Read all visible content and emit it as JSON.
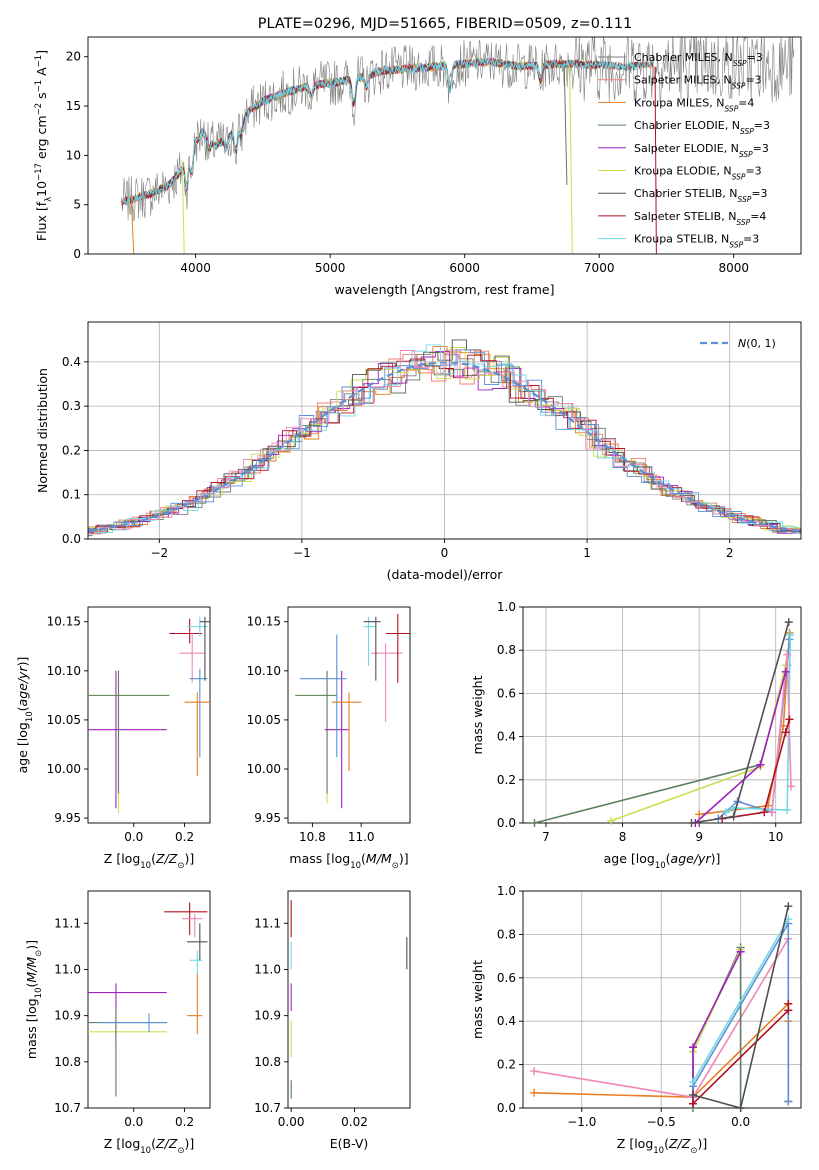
{
  "title": "PLATE=0296, MJD=51665, FIBERID=0509, z=0.111",
  "colors": {
    "chabrier_miles": "#808080",
    "salpeter_miles": "#f07f70",
    "kroupa_miles": "#e67e22",
    "chabrier_elodie": "#5a7f60",
    "salpeter_elodie": "#a020c0",
    "kroupa_elodie": "#c8e050",
    "chabrier_stelib": "#505050",
    "salpeter_stelib": "#b01020",
    "kroupa_stelib": "#70d8e8",
    "blue": "#5b8fd6",
    "pink": "#f088b8",
    "normal": "#5b8fd6"
  },
  "chart_data": [
    {
      "id": "spectrum",
      "type": "line",
      "xlabel": "wavelength [Angstrom, rest frame]",
      "ylabel": "Flux [f_λ 10^-17 erg cm^-2 s^-1 A^-1]",
      "xlim": [
        3200,
        8500
      ],
      "ylim": [
        0,
        22
      ],
      "xticks": [
        "4000",
        "5000",
        "6000",
        "7000",
        "8000"
      ],
      "yticks": [
        "0",
        "5",
        "10",
        "15",
        "20"
      ],
      "legend_position": "upper right",
      "series": [
        {
          "name": "Chabrier MILES, N_SSP=3"
        },
        {
          "name": "Salpeter MILES, N_SSP=3"
        },
        {
          "name": "Kroupa MILES, N_SSP=4"
        },
        {
          "name": "Chabrier ELODIE, N_SSP=3"
        },
        {
          "name": "Salpeter ELODIE, N_SSP=3"
        },
        {
          "name": "Kroupa ELODIE, N_SSP=3"
        },
        {
          "name": "Chabrier STELIB, N_SSP=3"
        },
        {
          "name": "Salpeter STELIB, N_SSP=4"
        },
        {
          "name": "Kroupa STELIB, N_SSP=3"
        }
      ],
      "continuum": {
        "x": [
          3450,
          3550,
          3650,
          3700,
          3800,
          3900,
          3950,
          4050,
          4150,
          4300,
          4400,
          4500,
          4700,
          4900,
          5000,
          5200,
          5400,
          5600,
          5800,
          6000,
          6200,
          6400,
          6600,
          6800,
          7000,
          7200,
          7400
        ],
        "y": [
          5.3,
          5.6,
          6.0,
          6.3,
          7.0,
          8.5,
          10.5,
          12.3,
          11.0,
          12.5,
          14.5,
          15.5,
          16.5,
          17.2,
          17.3,
          17.8,
          18.6,
          18.8,
          19.0,
          19.3,
          19.5,
          19.0,
          19.2,
          19.3,
          19.2,
          19.0,
          19.2
        ]
      }
    },
    {
      "id": "residuals",
      "type": "area",
      "xlabel": "(data-model)/error",
      "ylabel": "Normed distribution",
      "xlim": [
        -2.5,
        2.5
      ],
      "ylim": [
        0,
        0.49
      ],
      "xticks": [
        "−2",
        "−1",
        "0",
        "1",
        "2"
      ],
      "yticks": [
        "0.0",
        "0.1",
        "0.2",
        "0.3",
        "0.4"
      ],
      "grid": true,
      "legend_position": "upper right",
      "legend": "N(0,1)"
    },
    {
      "id": "age_vs_Z",
      "type": "scatter",
      "xlabel": "Z [log10(Z/Z⊙)]",
      "ylabel": "age  [log10(age/yr)]",
      "xlim": [
        -0.18,
        0.3
      ],
      "ylim": [
        9.945,
        10.165
      ],
      "xticks": [
        "0.0",
        "0.2"
      ],
      "yticks": [
        "9.95",
        "10.00",
        "10.05",
        "10.10",
        "10.15"
      ],
      "points": [
        {
          "x": -0.07,
          "xe": [
            0.2,
            0.2
          ],
          "y": 10.04,
          "ye": [
            0.08,
            0.06
          ],
          "color": "#a020c0"
        },
        {
          "x": -0.06,
          "xe": [
            0.2,
            0.2
          ],
          "y": 10.075,
          "ye": [
            0.12,
            0.02
          ],
          "color": "#c8e050"
        },
        {
          "x": -0.06,
          "xe": [
            0.2,
            0.2
          ],
          "y": 10.075,
          "ye": [
            0.1,
            0.025
          ],
          "color": "#5a7f60"
        },
        {
          "x": 0.22,
          "xe": [
            0.08,
            0.05
          ],
          "y": 10.138,
          "ye": [
            0.01,
            0.015
          ],
          "color": "#b01020"
        },
        {
          "x": 0.25,
          "xe": [
            0.05,
            0.05
          ],
          "y": 10.068,
          "ye": [
            0.075,
            0.01
          ],
          "color": "#e67e22"
        },
        {
          "x": 0.23,
          "xe": [
            0.05,
            0.05
          ],
          "y": 10.118,
          "ye": [
            0.03,
            0.02
          ],
          "color": "#f088b8"
        },
        {
          "x": 0.26,
          "xe": [
            0.05,
            0.03
          ],
          "y": 10.145,
          "ye": [
            0.01,
            0.01
          ],
          "color": "#70d8e8"
        },
        {
          "x": 0.26,
          "xe": [
            0.04,
            0.03
          ],
          "y": 10.092,
          "ye": [
            0.08,
            0.01
          ],
          "color": "#5b8fd6"
        },
        {
          "x": 0.28,
          "xe": [
            0.02,
            0.02
          ],
          "y": 10.15,
          "ye": [
            0.06,
            0.005
          ],
          "color": "#505050"
        }
      ]
    },
    {
      "id": "age_vs_mass",
      "type": "scatter",
      "xlabel": "mass [log10(M/M⊙)]",
      "ylabel": "",
      "xlim": [
        10.7,
        11.2
      ],
      "ylim": [
        9.945,
        10.165
      ],
      "xticks": [
        "10.8",
        "11.0"
      ],
      "yticks": [
        "9.95",
        "10.00",
        "10.05",
        "10.10",
        "10.15"
      ],
      "points": [
        {
          "x": 10.86,
          "xe": [
            0.13,
            0.04
          ],
          "y": 10.075,
          "ye": [
            0.11,
            0.025
          ],
          "color": "#c8e050"
        },
        {
          "x": 10.86,
          "xe": [
            0.13,
            0.04
          ],
          "y": 10.075,
          "ye": [
            0.1,
            0.025
          ],
          "color": "#5a7f60"
        },
        {
          "x": 10.92,
          "xe": [
            0.07,
            0.03
          ],
          "y": 10.04,
          "ye": [
            0.08,
            0.06
          ],
          "color": "#a020c0"
        },
        {
          "x": 10.9,
          "xe": [
            0.15,
            0.04
          ],
          "y": 10.092,
          "ye": [
            0.08,
            0.045
          ],
          "color": "#5b8fd6"
        },
        {
          "x": 10.95,
          "xe": [
            0.07,
            0.05
          ],
          "y": 10.068,
          "ye": [
            0.07,
            0.01
          ],
          "color": "#e67e22"
        },
        {
          "x": 11.03,
          "xe": [
            0.02,
            0.03
          ],
          "y": 10.145,
          "ye": [
            0.04,
            0.01
          ],
          "color": "#70d8e8"
        },
        {
          "x": 11.1,
          "xe": [
            0.06,
            0.07
          ],
          "y": 10.118,
          "ye": [
            0.07,
            0.01
          ],
          "color": "#f088b8"
        },
        {
          "x": 11.15,
          "xe": [
            0.05,
            0.05
          ],
          "y": 10.138,
          "ye": [
            0.05,
            0.02
          ],
          "color": "#b01020"
        },
        {
          "x": 11.06,
          "xe": [
            0.05,
            0.02
          ],
          "y": 10.15,
          "ye": [
            0.06,
            0.005
          ],
          "color": "#505050"
        }
      ]
    },
    {
      "id": "massweight_vs_age",
      "type": "line",
      "xlabel": "age  [log10(age/yr)]",
      "ylabel": "mass weight",
      "xlim": [
        6.7,
        10.33
      ],
      "ylim": [
        0,
        1
      ],
      "xticks": [
        "7",
        "8",
        "9",
        "10"
      ],
      "yticks": [
        "0.0",
        "0.2",
        "0.4",
        "0.6",
        "0.8",
        "1.0"
      ],
      "grid": true,
      "series": [
        {
          "color": "#5a7f60",
          "x": [
            6.85,
            9.8,
            10.15
          ],
          "y": [
            0.0,
            0.27,
            0.73
          ]
        },
        {
          "color": "#c8e050",
          "x": [
            7.85,
            9.8,
            10.13
          ],
          "y": [
            0.01,
            0.26,
            0.73
          ]
        },
        {
          "color": "#e67e22",
          "x": [
            9.0,
            9.9,
            10.1,
            10.18
          ],
          "y": [
            0.04,
            0.08,
            0.45,
            0.88
          ]
        },
        {
          "color": "#5b8fd6",
          "x": [
            9.25,
            9.5,
            9.95,
            10.18
          ],
          "y": [
            0.02,
            0.1,
            0.05,
            0.85
          ]
        },
        {
          "color": "#70d8e8",
          "x": [
            9.35,
            9.45,
            10.15,
            10.19
          ],
          "y": [
            0.05,
            0.07,
            0.06,
            0.87
          ]
        },
        {
          "color": "#f088b8",
          "x": [
            9.95,
            10.15,
            10.2
          ],
          "y": [
            0.05,
            0.78,
            0.17
          ]
        },
        {
          "color": "#a020c0",
          "x": [
            8.95,
            9.8,
            10.13
          ],
          "y": [
            0.0,
            0.27,
            0.7
          ]
        },
        {
          "color": "#b01020",
          "x": [
            9.3,
            9.85,
            10.13,
            10.18
          ],
          "y": [
            0.02,
            0.05,
            0.42,
            0.48
          ]
        },
        {
          "color": "#505050",
          "x": [
            8.9,
            9.45,
            10.17
          ],
          "y": [
            0.0,
            0.03,
            0.93
          ]
        }
      ]
    },
    {
      "id": "mass_vs_Z",
      "type": "scatter",
      "xlabel": "Z [log10(Z/Z⊙)]",
      "ylabel": "mass [log10(M/M⊙)]",
      "xlim": [
        -0.18,
        0.3
      ],
      "ylim": [
        10.7,
        11.17
      ],
      "xticks": [
        "0.0",
        "0.2"
      ],
      "yticks": [
        "10.7",
        "10.8",
        "10.9",
        "11.0",
        "11.1"
      ],
      "points": [
        {
          "x": -0.07,
          "xe": [
            0.2,
            0.2
          ],
          "y": 10.95,
          "ye": [
            0.11,
            0.02
          ],
          "color": "#a020c0"
        },
        {
          "x": -0.07,
          "xe": [
            0.2,
            0.2
          ],
          "y": 10.865,
          "ye": [
            0.1,
            0.03
          ],
          "color": "#c8e050"
        },
        {
          "x": -0.07,
          "xe": [
            0.2,
            0.2
          ],
          "y": 10.885,
          "ye": [
            0.16,
            0.03
          ],
          "color": "#5a7f60"
        },
        {
          "x": 0.06,
          "xe": [
            0.2,
            0.06
          ],
          "y": 10.885,
          "ye": [
            0.02,
            0.02
          ],
          "color": "#5b8fd6"
        },
        {
          "x": 0.22,
          "xe": [
            0.1,
            0.07
          ],
          "y": 11.125,
          "ye": [
            0.05,
            0.02
          ],
          "color": "#b01020"
        },
        {
          "x": 0.24,
          "xe": [
            0.05,
            0.03
          ],
          "y": 11.11,
          "ye": [
            0.04,
            0.01
          ],
          "color": "#f088b8"
        },
        {
          "x": 0.25,
          "xe": [
            0.03,
            0.02
          ],
          "y": 11.02,
          "ye": [
            0.03,
            0.02
          ],
          "color": "#70d8e8"
        },
        {
          "x": 0.26,
          "xe": [
            0.05,
            0.03
          ],
          "y": 11.06,
          "ye": [
            0.04,
            0.04
          ],
          "color": "#505050"
        },
        {
          "x": 0.25,
          "xe": [
            0.04,
            0.02
          ],
          "y": 10.9,
          "ye": [
            0.04,
            0.09
          ],
          "color": "#e67e22"
        }
      ]
    },
    {
      "id": "mass_vs_ebv",
      "type": "scatter",
      "xlabel": "E(B-V)",
      "ylabel": "",
      "xlim": [
        -0.001,
        0.0375
      ],
      "ylim": [
        10.7,
        11.17
      ],
      "xticks": [
        "0.00",
        "0.02"
      ],
      "yticks": [
        "10.7",
        "10.8",
        "10.9",
        "11.0",
        "11.1"
      ],
      "points": [
        {
          "x": 0.0,
          "y": 11.1,
          "ye": [
            0.03,
            0.05
          ],
          "color": "#b01020"
        },
        {
          "x": 0.0,
          "y": 11.03,
          "ye": [
            0.03,
            0.03
          ],
          "color": "#70d8e8"
        },
        {
          "x": 0.0,
          "y": 10.93,
          "ye": [
            0.02,
            0.04
          ],
          "color": "#a020c0"
        },
        {
          "x": 0.0,
          "y": 10.85,
          "ye": [
            0.04,
            0.04
          ],
          "color": "#c8e050"
        },
        {
          "x": 0.0,
          "y": 10.74,
          "ye": [
            0.02,
            0.02
          ],
          "color": "#5a7f60"
        },
        {
          "x": 0.0365,
          "y": 11.035,
          "ye": [
            0.035,
            0.035
          ],
          "color": "#505050"
        }
      ]
    },
    {
      "id": "massweight_vs_Z",
      "type": "line",
      "xlabel": "Z [log10(Z/Z⊙)]",
      "ylabel": "mass weight",
      "xlim": [
        -1.37,
        0.38
      ],
      "ylim": [
        0,
        1
      ],
      "xticks": [
        "−1.0",
        "−0.5",
        "0.0"
      ],
      "yticks": [
        "0.0",
        "0.2",
        "0.4",
        "0.6",
        "0.8",
        "1.0"
      ],
      "grid": true,
      "series": [
        {
          "color": "#e67e22",
          "x": [
            -1.3,
            -0.3,
            0.3,
            0.3,
            0.3
          ],
          "y": [
            0.07,
            0.05,
            0.48,
            0.4,
            0.03
          ]
        },
        {
          "color": "#f088b8",
          "x": [
            -1.3,
            -0.3,
            0.3
          ],
          "y": [
            0.17,
            0.05,
            0.78
          ]
        },
        {
          "color": "#5a7f60",
          "x": [
            -0.3,
            -0.3,
            0.0,
            0.0
          ],
          "y": [
            0.0,
            0.26,
            0.74,
            0.0
          ]
        },
        {
          "color": "#c8e050",
          "x": [
            -0.3,
            0.0
          ],
          "y": [
            0.26,
            0.73
          ]
        },
        {
          "color": "#a020c0",
          "x": [
            -0.3,
            -0.3,
            0.0
          ],
          "y": [
            0.02,
            0.28,
            0.72
          ]
        },
        {
          "color": "#5b8fd6",
          "x": [
            -0.3,
            0.3,
            0.3
          ],
          "y": [
            0.1,
            0.85,
            0.03
          ]
        },
        {
          "color": "#70d8e8",
          "x": [
            -0.3,
            0.3
          ],
          "y": [
            0.12,
            0.87
          ]
        },
        {
          "color": "#b01020",
          "x": [
            -0.3,
            0.3,
            0.3
          ],
          "y": [
            0.02,
            0.45,
            0.48
          ]
        },
        {
          "color": "#505050",
          "x": [
            -0.3,
            0.0,
            0.3
          ],
          "y": [
            0.06,
            0.0,
            0.93
          ]
        }
      ]
    }
  ]
}
